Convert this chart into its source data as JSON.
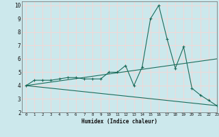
{
  "xlabel": "Humidex (Indice chaleur)",
  "ylabel": "",
  "background_color": "#cce8ec",
  "grid_color": "#f0d8d8",
  "line_color": "#1a6b5a",
  "xlim": [
    -0.5,
    23
  ],
  "ylim": [
    2,
    10.3
  ],
  "xticks": [
    0,
    1,
    2,
    3,
    4,
    5,
    6,
    7,
    8,
    9,
    10,
    11,
    12,
    13,
    14,
    15,
    16,
    17,
    18,
    19,
    20,
    21,
    22,
    23
  ],
  "yticks": [
    2,
    3,
    4,
    5,
    6,
    7,
    8,
    9,
    10
  ],
  "series1_x": [
    0,
    1,
    2,
    3,
    4,
    5,
    6,
    7,
    8,
    9,
    10,
    11,
    12,
    13,
    14,
    15,
    16,
    17,
    18,
    19,
    20,
    21,
    22,
    23
  ],
  "series1_y": [
    4.0,
    4.4,
    4.4,
    4.4,
    4.5,
    4.6,
    4.6,
    4.5,
    4.5,
    4.5,
    5.0,
    5.0,
    5.5,
    4.0,
    5.4,
    9.0,
    10.0,
    7.5,
    5.3,
    6.9,
    3.8,
    3.3,
    2.9,
    2.5
  ],
  "trend1_x": [
    0,
    23
  ],
  "trend1_y": [
    4.0,
    6.0
  ],
  "trend2_x": [
    0,
    23
  ],
  "trend2_y": [
    4.0,
    2.5
  ],
  "marker": "+"
}
